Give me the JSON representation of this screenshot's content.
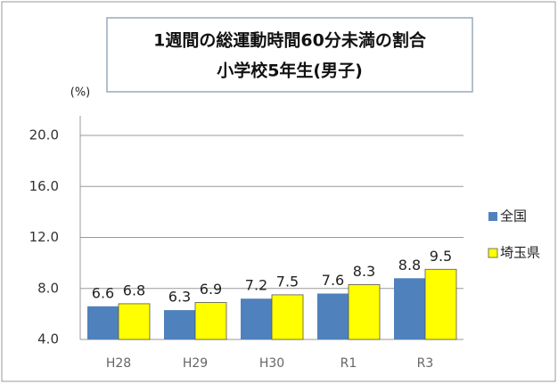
{
  "chart_data": {
    "type": "bar",
    "title": [
      "1週間の総運動時間60分未満の割合",
      "小学校5年生(男子)"
    ],
    "y_label": "(%)",
    "categories": [
      "H28",
      "H29",
      "H30",
      "R1",
      "R3"
    ],
    "series": [
      {
        "name": "全国",
        "color": "#4f81bd",
        "values": [
          6.6,
          6.3,
          7.2,
          7.6,
          8.8
        ]
      },
      {
        "name": "埼玉県",
        "color": "#ffff00",
        "values": [
          6.8,
          6.9,
          7.5,
          8.3,
          9.5
        ]
      }
    ],
    "ylim": [
      4,
      20
    ],
    "yticks": [
      {
        "value": 4,
        "label": "4.0"
      },
      {
        "value": 8,
        "label": "8.0"
      },
      {
        "value": 12,
        "label": "12.0"
      },
      {
        "value": 16,
        "label": "16.0"
      },
      {
        "value": 20,
        "label": "20.0"
      }
    ],
    "grid": true,
    "legend": "right"
  }
}
